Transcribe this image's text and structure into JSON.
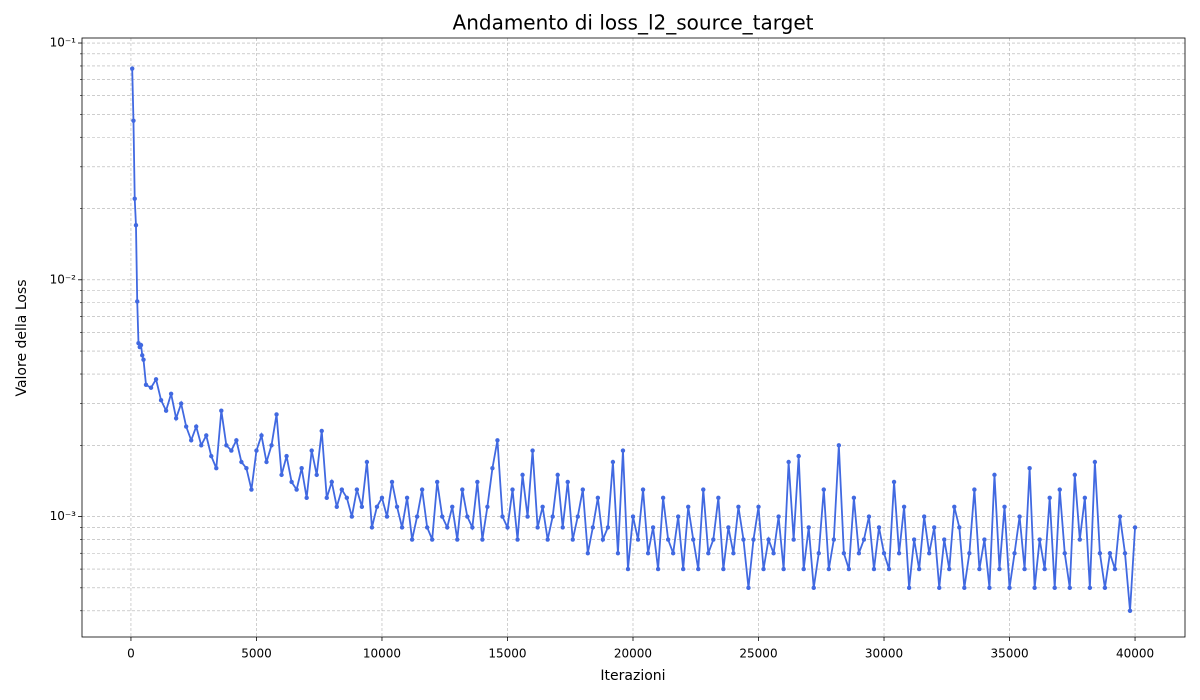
{
  "chart_data": {
    "type": "line",
    "title": "Andamento di loss_l2_source_target",
    "x_label": "Iterazioni",
    "y_label": "Valore della Loss",
    "log_y": true,
    "grid": true,
    "xlim": [
      -1950,
      41990
    ],
    "xticks": [
      0,
      5000,
      10000,
      15000,
      20000,
      25000,
      30000,
      35000,
      40000
    ],
    "ylim": [
      0.00031,
      0.105
    ],
    "yticks": [
      {
        "value": 0.001,
        "label": "10⁻³"
      },
      {
        "value": 0.01,
        "label": "10⁻²"
      },
      {
        "value": 0.1,
        "label": "10⁻¹"
      }
    ],
    "yminorticks": [
      0.0004,
      0.0005,
      0.0006,
      0.0007,
      0.0008,
      0.0009,
      0.002,
      0.003,
      0.004,
      0.005,
      0.006,
      0.007,
      0.008,
      0.009,
      0.02,
      0.03,
      0.04,
      0.05,
      0.06,
      0.07,
      0.08,
      0.09
    ],
    "x": [
      50,
      100,
      150,
      200,
      250,
      300,
      350,
      400,
      450,
      500,
      600,
      800,
      1000,
      1200,
      1400,
      1600,
      1800,
      2000,
      2200,
      2400,
      2600,
      2800,
      3000,
      3200,
      3400,
      3600,
      3800,
      4000,
      4200,
      4400,
      4600,
      4800,
      5000,
      5200,
      5400,
      5600,
      5800,
      6000,
      6200,
      6400,
      6600,
      6800,
      7000,
      7200,
      7400,
      7600,
      7800,
      8000,
      8200,
      8400,
      8600,
      8800,
      9000,
      9200,
      9400,
      9600,
      9800,
      10000,
      10200,
      10400,
      10600,
      10800,
      11000,
      11200,
      11400,
      11600,
      11800,
      12000,
      12200,
      12400,
      12600,
      12800,
      13000,
      13200,
      13400,
      13600,
      13800,
      14000,
      14200,
      14400,
      14600,
      14800,
      15000,
      15200,
      15400,
      15600,
      15800,
      16000,
      16200,
      16400,
      16600,
      16800,
      17000,
      17200,
      17400,
      17600,
      17800,
      18000,
      18200,
      18400,
      18600,
      18800,
      19000,
      19200,
      19400,
      19600,
      19800,
      20000,
      20200,
      20400,
      20600,
      20800,
      21000,
      21200,
      21400,
      21600,
      21800,
      22000,
      22200,
      22400,
      22600,
      22800,
      23000,
      23200,
      23400,
      23600,
      23800,
      24000,
      24200,
      24400,
      24600,
      24800,
      25000,
      25200,
      25400,
      25600,
      25800,
      26000,
      26200,
      26400,
      26600,
      26800,
      27000,
      27200,
      27400,
      27600,
      27800,
      28000,
      28200,
      28400,
      28600,
      28800,
      29000,
      29200,
      29400,
      29600,
      29800,
      30000,
      30200,
      30400,
      30600,
      30800,
      31000,
      31200,
      31400,
      31600,
      31800,
      32000,
      32200,
      32400,
      32600,
      32800,
      33000,
      33200,
      33400,
      33600,
      33800,
      34000,
      34200,
      34400,
      34600,
      34800,
      35000,
      35200,
      35400,
      35600,
      35800,
      36000,
      36200,
      36400,
      36600,
      36800,
      37000,
      37200,
      37400,
      37600,
      37800,
      38000,
      38200,
      38400,
      38600,
      38800,
      39000,
      39200,
      39400,
      39600,
      39800,
      40000
    ],
    "series": [
      {
        "color": "#4169e1",
        "values": [
          0.078,
          0.047,
          0.022,
          0.017,
          0.0081,
          0.0054,
          0.0052,
          0.0053,
          0.0048,
          0.0046,
          0.0036,
          0.0035,
          0.0038,
          0.0031,
          0.0028,
          0.0033,
          0.0026,
          0.003,
          0.0024,
          0.0021,
          0.0024,
          0.002,
          0.0022,
          0.0018,
          0.0016,
          0.0028,
          0.002,
          0.0019,
          0.0021,
          0.0017,
          0.0016,
          0.0013,
          0.0019,
          0.0022,
          0.0017,
          0.002,
          0.0027,
          0.0015,
          0.0018,
          0.0014,
          0.0013,
          0.0016,
          0.0012,
          0.0019,
          0.0015,
          0.0023,
          0.0012,
          0.0014,
          0.0011,
          0.0013,
          0.0012,
          0.001,
          0.0013,
          0.0011,
          0.0017,
          0.0009,
          0.0011,
          0.0012,
          0.001,
          0.0014,
          0.0011,
          0.0009,
          0.0012,
          0.0008,
          0.001,
          0.0013,
          0.0009,
          0.0008,
          0.0014,
          0.001,
          0.0009,
          0.0011,
          0.0008,
          0.0013,
          0.001,
          0.0009,
          0.0014,
          0.0008,
          0.0011,
          0.0016,
          0.0021,
          0.001,
          0.0009,
          0.0013,
          0.0008,
          0.0015,
          0.001,
          0.0019,
          0.0009,
          0.0011,
          0.0008,
          0.001,
          0.0015,
          0.0009,
          0.0014,
          0.0008,
          0.001,
          0.0013,
          0.0007,
          0.0009,
          0.0012,
          0.0008,
          0.0009,
          0.0017,
          0.0007,
          0.0019,
          0.0006,
          0.001,
          0.0008,
          0.0013,
          0.0007,
          0.0009,
          0.0006,
          0.0012,
          0.0008,
          0.0007,
          0.001,
          0.0006,
          0.0011,
          0.0008,
          0.0006,
          0.0013,
          0.0007,
          0.0008,
          0.0012,
          0.0006,
          0.0009,
          0.0007,
          0.0011,
          0.0008,
          0.0005,
          0.0008,
          0.0011,
          0.0006,
          0.0008,
          0.0007,
          0.001,
          0.0006,
          0.0017,
          0.0008,
          0.0018,
          0.0006,
          0.0009,
          0.0005,
          0.0007,
          0.0013,
          0.0006,
          0.0008,
          0.002,
          0.0007,
          0.0006,
          0.0012,
          0.0007,
          0.0008,
          0.001,
          0.0006,
          0.0009,
          0.0007,
          0.0006,
          0.0014,
          0.0007,
          0.0011,
          0.0005,
          0.0008,
          0.0006,
          0.001,
          0.0007,
          0.0009,
          0.0005,
          0.0008,
          0.0006,
          0.0011,
          0.0009,
          0.0005,
          0.0007,
          0.0013,
          0.0006,
          0.0008,
          0.0005,
          0.0015,
          0.0006,
          0.0011,
          0.0005,
          0.0007,
          0.001,
          0.0006,
          0.0016,
          0.0005,
          0.0008,
          0.0006,
          0.0012,
          0.0005,
          0.0013,
          0.0007,
          0.0005,
          0.0015,
          0.0008,
          0.0012,
          0.0005,
          0.0017,
          0.0007,
          0.0005,
          0.0007,
          0.0006,
          0.001,
          0.0007,
          0.0004,
          0.0009
        ]
      }
    ]
  }
}
